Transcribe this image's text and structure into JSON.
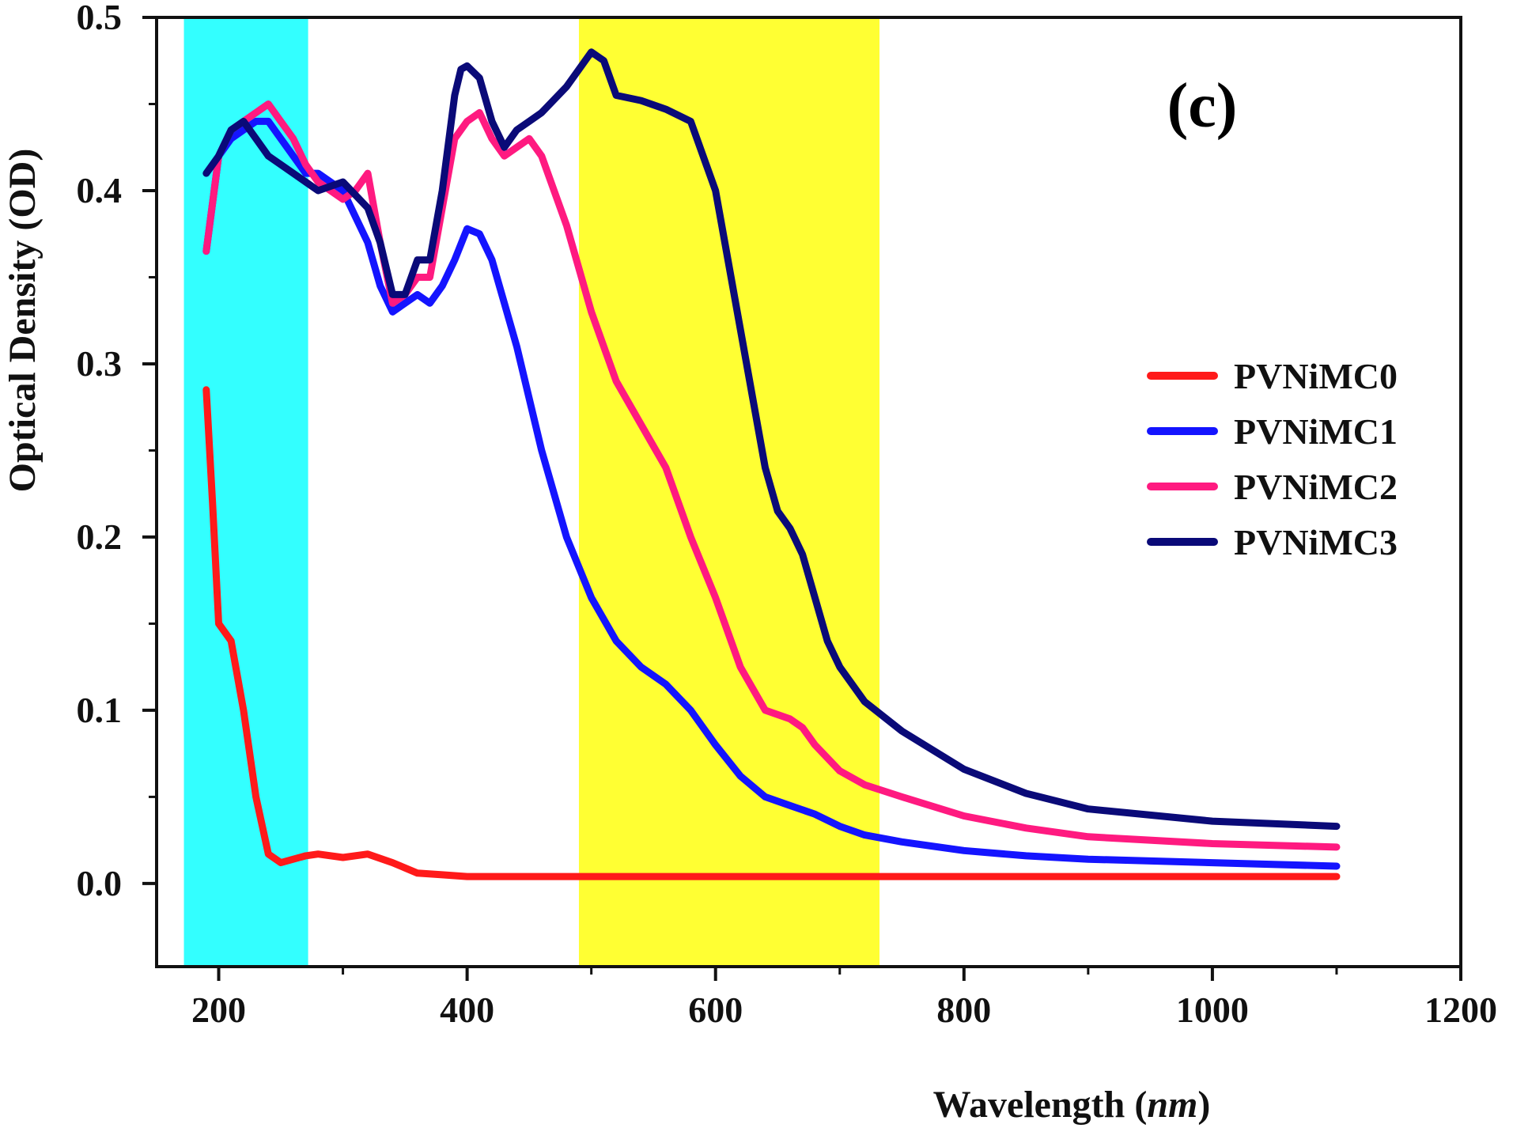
{
  "chart_data": {
    "type": "line",
    "title": "",
    "panel_label": "(c)",
    "xlabel": "Wavelength",
    "xlabel_unit": "nm",
    "ylabel": "Optical Density (OD)",
    "xlim": [
      150,
      1200
    ],
    "ylim": [
      -0.048,
      0.5
    ],
    "x_ticks": [
      200,
      400,
      600,
      800,
      1000,
      1200
    ],
    "x_tick_labels": [
      "200",
      "400",
      "600",
      "800",
      "1000",
      "1200"
    ],
    "y_ticks": [
      0.0,
      0.1,
      0.2,
      0.3,
      0.4,
      0.5
    ],
    "y_tick_labels": [
      "0.0",
      "0.1",
      "0.2",
      "0.3",
      "0.4",
      "0.5"
    ],
    "grid": false,
    "legend_position": "right",
    "shaded_bands": [
      {
        "name": "UV region",
        "x_range": [
          172,
          272
        ],
        "color": "#33ffff"
      },
      {
        "name": "visible region",
        "x_range": [
          490,
          732
        ],
        "color": "#ffff33"
      }
    ],
    "series": [
      {
        "name": "PVNiMC0",
        "color": "#ff1a1a",
        "x": [
          190,
          195,
          200,
          210,
          220,
          230,
          240,
          250,
          260,
          270,
          280,
          300,
          320,
          340,
          360,
          380,
          400,
          450,
          500,
          600,
          700,
          800,
          900,
          1000,
          1100
        ],
        "y": [
          0.285,
          0.22,
          0.15,
          0.14,
          0.1,
          0.05,
          0.017,
          0.012,
          0.014,
          0.016,
          0.017,
          0.015,
          0.017,
          0.012,
          0.006,
          0.005,
          0.004,
          0.004,
          0.004,
          0.004,
          0.004,
          0.004,
          0.004,
          0.004,
          0.004
        ]
      },
      {
        "name": "PVNiMC1",
        "color": "#1414ff",
        "x": [
          190,
          200,
          210,
          220,
          230,
          240,
          250,
          260,
          270,
          280,
          300,
          320,
          330,
          340,
          350,
          360,
          370,
          380,
          390,
          400,
          410,
          420,
          440,
          460,
          480,
          500,
          520,
          540,
          560,
          580,
          600,
          620,
          640,
          660,
          680,
          700,
          720,
          750,
          800,
          850,
          900,
          1000,
          1100
        ],
        "y": [
          0.365,
          0.42,
          0.43,
          0.435,
          0.44,
          0.44,
          0.43,
          0.42,
          0.41,
          0.41,
          0.4,
          0.37,
          0.345,
          0.33,
          0.335,
          0.34,
          0.335,
          0.345,
          0.36,
          0.378,
          0.375,
          0.36,
          0.31,
          0.25,
          0.2,
          0.165,
          0.14,
          0.125,
          0.115,
          0.1,
          0.08,
          0.062,
          0.05,
          0.045,
          0.04,
          0.033,
          0.028,
          0.024,
          0.019,
          0.016,
          0.014,
          0.012,
          0.01
        ]
      },
      {
        "name": "PVNiMC2",
        "color": "#ff1a80",
        "x": [
          190,
          200,
          210,
          220,
          230,
          240,
          250,
          260,
          270,
          280,
          300,
          310,
          320,
          330,
          340,
          350,
          360,
          370,
          380,
          390,
          400,
          410,
          420,
          430,
          440,
          450,
          460,
          480,
          500,
          520,
          540,
          560,
          580,
          600,
          620,
          640,
          660,
          670,
          680,
          700,
          720,
          750,
          800,
          850,
          900,
          1000,
          1100
        ],
        "y": [
          0.365,
          0.42,
          0.435,
          0.44,
          0.445,
          0.45,
          0.44,
          0.43,
          0.415,
          0.405,
          0.395,
          0.4,
          0.41,
          0.37,
          0.335,
          0.34,
          0.35,
          0.35,
          0.39,
          0.43,
          0.44,
          0.445,
          0.43,
          0.42,
          0.425,
          0.43,
          0.42,
          0.38,
          0.33,
          0.29,
          0.265,
          0.24,
          0.2,
          0.165,
          0.125,
          0.1,
          0.095,
          0.09,
          0.08,
          0.065,
          0.057,
          0.05,
          0.039,
          0.032,
          0.027,
          0.023,
          0.021
        ]
      },
      {
        "name": "PVNiMC3",
        "color": "#0a0a78",
        "x": [
          190,
          200,
          210,
          220,
          230,
          240,
          250,
          260,
          270,
          280,
          300,
          320,
          330,
          340,
          350,
          360,
          370,
          380,
          390,
          395,
          400,
          410,
          420,
          430,
          440,
          450,
          460,
          480,
          490,
          500,
          510,
          520,
          540,
          560,
          580,
          600,
          610,
          620,
          630,
          640,
          650,
          660,
          670,
          680,
          690,
          700,
          720,
          750,
          800,
          850,
          900,
          1000,
          1100
        ],
        "y": [
          0.41,
          0.42,
          0.435,
          0.44,
          0.43,
          0.42,
          0.415,
          0.41,
          0.405,
          0.4,
          0.405,
          0.39,
          0.37,
          0.34,
          0.34,
          0.36,
          0.36,
          0.4,
          0.455,
          0.47,
          0.472,
          0.465,
          0.44,
          0.425,
          0.435,
          0.44,
          0.445,
          0.46,
          0.47,
          0.48,
          0.475,
          0.455,
          0.452,
          0.447,
          0.44,
          0.4,
          0.36,
          0.32,
          0.28,
          0.24,
          0.215,
          0.205,
          0.19,
          0.165,
          0.14,
          0.125,
          0.105,
          0.088,
          0.066,
          0.052,
          0.043,
          0.036,
          0.033
        ]
      }
    ]
  }
}
